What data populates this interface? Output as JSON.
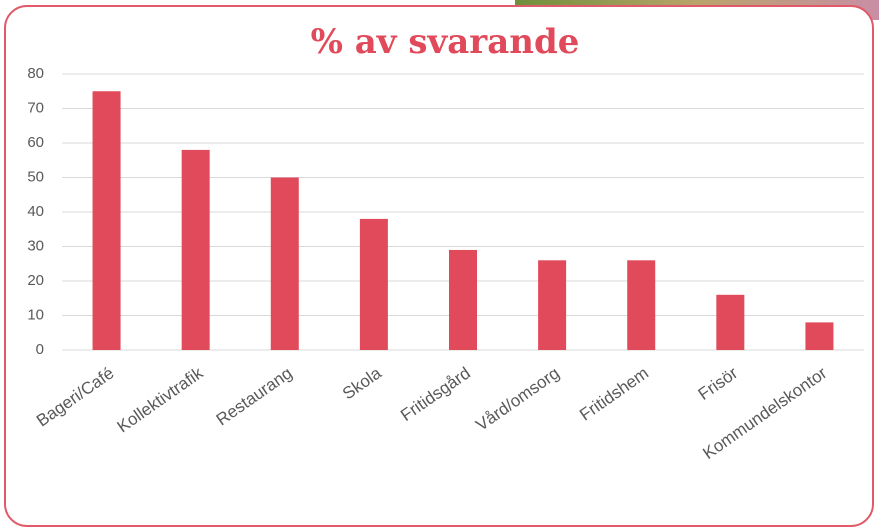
{
  "chart_data": {
    "type": "bar",
    "title": "% av svarande",
    "categories": [
      "Bageri/Café",
      "Kollektivtrafik",
      "Restaurang",
      "Skola",
      "Fritidsgård",
      "Vård/omsorg",
      "Fritidshem",
      "Frisör",
      "Kommundelskontor"
    ],
    "values": [
      75,
      58,
      50,
      38,
      29,
      26,
      26,
      16,
      8
    ],
    "color": "#e04a5a",
    "ylim": [
      0,
      80
    ],
    "yticks": [
      0,
      10,
      20,
      30,
      40,
      50,
      60,
      70,
      80
    ],
    "grid": true
  }
}
